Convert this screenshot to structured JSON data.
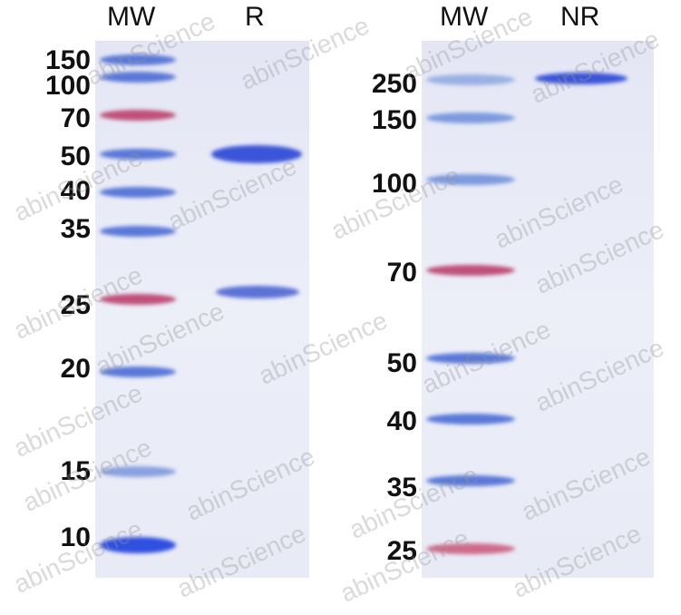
{
  "headers": {
    "left_mw": "MW",
    "left_r": "R",
    "right_mw": "MW",
    "right_nr": "NR"
  },
  "left_markers": [
    "150",
    "100",
    "70",
    "50",
    "40",
    "35",
    "25",
    "20",
    "15",
    "10"
  ],
  "right_markers": [
    "250",
    "150",
    "100",
    "70",
    "50",
    "40",
    "35",
    "25"
  ],
  "watermark": "abinScience",
  "colors": {
    "marker_blue": "#5a78d8",
    "marker_pink": "#c0507a",
    "sample_band": "#3b55d8",
    "gel": "#e6e8f6"
  }
}
